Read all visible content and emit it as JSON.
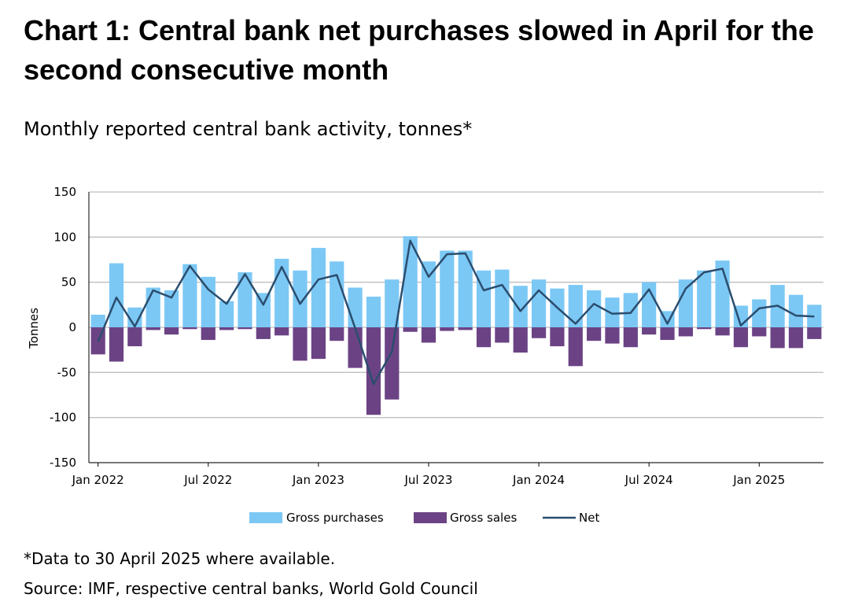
{
  "title": "Chart 1: Central bank net purchases slowed in April for the second consecutive month",
  "subtitle": "Monthly reported central bank activity, tonnes*",
  "footnote": "*Data to 30 April 2025 where available.",
  "source": "Source: IMF, respective central banks, World Gold Council",
  "colors": {
    "purchases": "#7cc8f5",
    "sales": "#6b4385",
    "net": "#2b4d6e",
    "grid": "#bfbfbf"
  },
  "chart_data": {
    "type": "bar",
    "xlabel": "",
    "ylabel": "Tonnes",
    "ylim": [
      -150,
      150
    ],
    "yticks": [
      150,
      100,
      50,
      0,
      -50,
      -100,
      -150
    ],
    "grid": true,
    "legend_position": "bottom",
    "x_tick_labels": [
      {
        "index": 0,
        "label": "Jan 2022"
      },
      {
        "index": 6,
        "label": "Jul 2022"
      },
      {
        "index": 12,
        "label": "Jan 2023"
      },
      {
        "index": 18,
        "label": "Jul 2023"
      },
      {
        "index": 24,
        "label": "Jan 2024"
      },
      {
        "index": 30,
        "label": "Jul 2024"
      },
      {
        "index": 36,
        "label": "Jan 2025"
      }
    ],
    "categories": [
      "2022-01",
      "2022-02",
      "2022-03",
      "2022-04",
      "2022-05",
      "2022-06",
      "2022-07",
      "2022-08",
      "2022-09",
      "2022-10",
      "2022-11",
      "2022-12",
      "2023-01",
      "2023-02",
      "2023-03",
      "2023-04",
      "2023-05",
      "2023-06",
      "2023-07",
      "2023-08",
      "2023-09",
      "2023-10",
      "2023-11",
      "2023-12",
      "2024-01",
      "2024-02",
      "2024-03",
      "2024-04",
      "2024-05",
      "2024-06",
      "2024-07",
      "2024-08",
      "2024-09",
      "2024-10",
      "2024-11",
      "2024-12",
      "2025-01",
      "2025-02",
      "2025-03",
      "2025-04"
    ],
    "series": [
      {
        "name": "Gross purchases",
        "type": "bar",
        "values": [
          14,
          71,
          22,
          44,
          41,
          70,
          56,
          29,
          61,
          38,
          76,
          63,
          88,
          73,
          44,
          34,
          53,
          101,
          73,
          85,
          85,
          63,
          64,
          46,
          53,
          43,
          47,
          41,
          33,
          38,
          50,
          18,
          53,
          63,
          74,
          24,
          31,
          47,
          36,
          25
        ]
      },
      {
        "name": "Gross sales",
        "type": "bar",
        "values": [
          -30,
          -38,
          -21,
          -3,
          -8,
          -2,
          -14,
          -3,
          -2,
          -13,
          -9,
          -37,
          -35,
          -15,
          -45,
          -97,
          -80,
          -5,
          -17,
          -4,
          -3,
          -22,
          -17,
          -28,
          -12,
          -21,
          -43,
          -15,
          -18,
          -22,
          -8,
          -14,
          -10,
          -2,
          -9,
          -22,
          -10,
          -23,
          -23,
          -13
        ]
      },
      {
        "name": "Net",
        "type": "line",
        "values": [
          -16,
          33,
          1,
          41,
          33,
          68,
          42,
          26,
          59,
          25,
          67,
          26,
          53,
          58,
          -1,
          -63,
          -27,
          96,
          56,
          81,
          82,
          41,
          47,
          18,
          41,
          22,
          4,
          26,
          15,
          16,
          42,
          4,
          43,
          61,
          65,
          2,
          21,
          24,
          13,
          12
        ]
      }
    ]
  },
  "legend": [
    "Gross purchases",
    "Gross sales",
    "Net"
  ]
}
